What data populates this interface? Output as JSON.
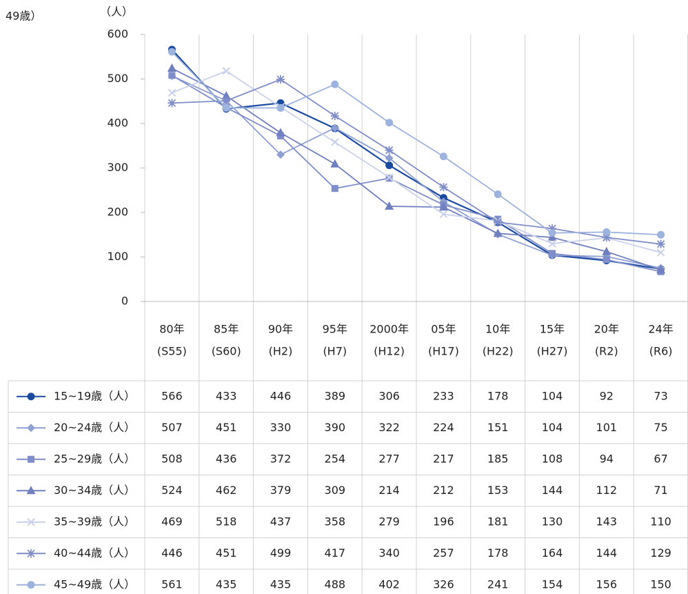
{
  "chart_data": {
    "type": "line",
    "corner_text": "49歳）",
    "y_label": "（人）",
    "categories": [
      "80年",
      "85年",
      "90年",
      "95年",
      "2000年",
      "05年",
      "10年",
      "15年",
      "20年",
      "24年"
    ],
    "category_eras": [
      "(S55)",
      "(S60)",
      "(H2)",
      "(H7)",
      "(H12)",
      "(H17)",
      "(H22)",
      "(H27)",
      "(R2)",
      "(R6)"
    ],
    "ylim": [
      0,
      600
    ],
    "yticks": [
      0,
      100,
      200,
      300,
      400,
      500,
      600
    ],
    "grid": "vertical",
    "series": [
      {
        "name": "15~19歳（人）",
        "color": "#1a4aa0",
        "marker": "circle",
        "values": [
          566,
          433,
          446,
          389,
          306,
          233,
          178,
          104,
          92,
          73
        ]
      },
      {
        "name": "20~24歳（人）",
        "color": "#8e9fd2",
        "marker": "diamond",
        "values": [
          507,
          451,
          330,
          390,
          322,
          224,
          151,
          104,
          101,
          75
        ]
      },
      {
        "name": "25~29歳（人）",
        "color": "#7f8ecb",
        "marker": "square",
        "values": [
          508,
          436,
          372,
          254,
          277,
          217,
          185,
          108,
          94,
          67
        ]
      },
      {
        "name": "30~34歳（人）",
        "color": "#6f7fc0",
        "marker": "triangle",
        "values": [
          524,
          462,
          379,
          309,
          214,
          212,
          153,
          144,
          112,
          71
        ]
      },
      {
        "name": "35~39歳（人）",
        "color": "#c9d1ec",
        "marker": "x",
        "values": [
          469,
          518,
          437,
          358,
          279,
          196,
          181,
          130,
          143,
          110
        ]
      },
      {
        "name": "40~44歳（人）",
        "color": "#7f8dc8",
        "marker": "star",
        "values": [
          446,
          451,
          499,
          417,
          340,
          257,
          178,
          164,
          144,
          129
        ]
      },
      {
        "name": "45~49歳（人）",
        "color": "#9cb3de",
        "marker": "circle",
        "values": [
          561,
          435,
          435,
          488,
          402,
          326,
          241,
          154,
          156,
          150
        ]
      }
    ]
  }
}
